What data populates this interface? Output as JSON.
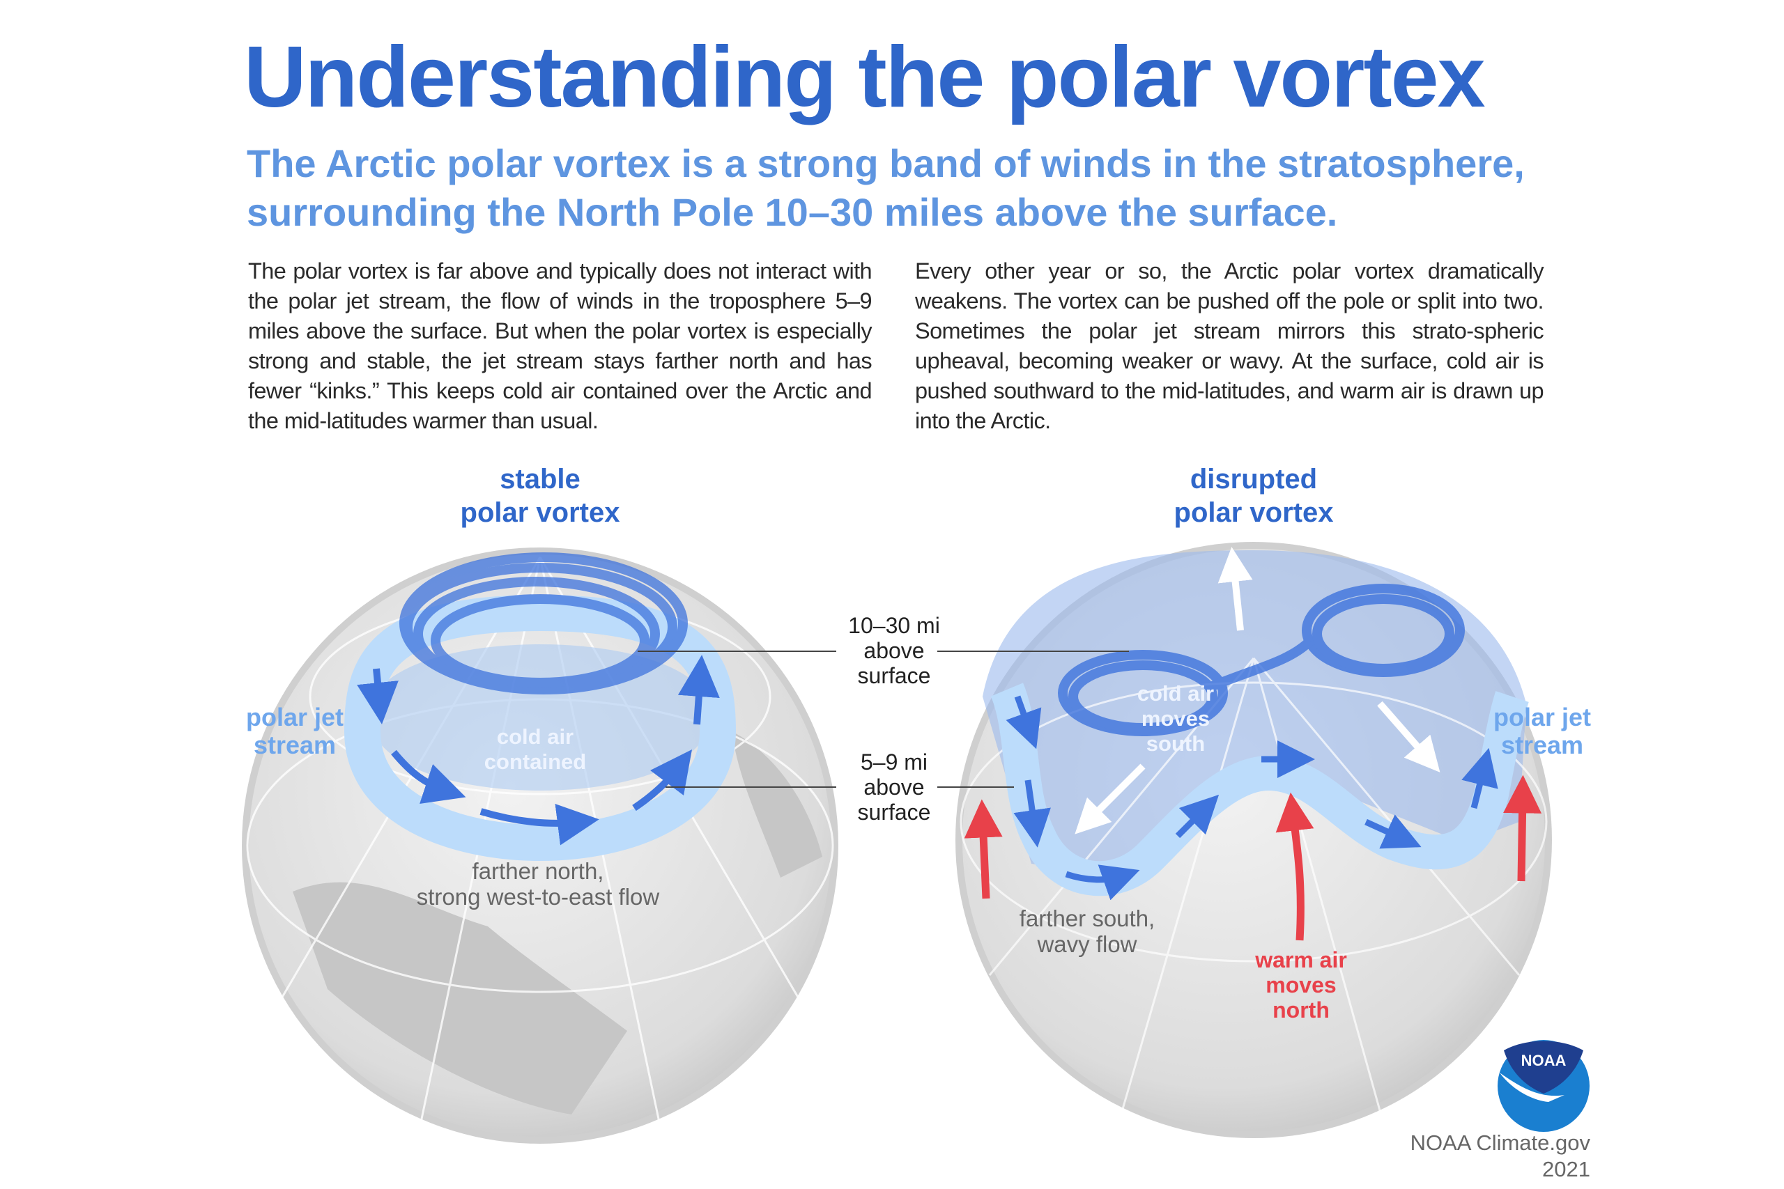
{
  "title": "Understanding the polar vortex",
  "subtitle": [
    "The Arctic polar vortex is a strong band of winds in the stratosphere,",
    "surrounding the North Pole 10–30 miles above the surface."
  ],
  "body_left": "The polar vortex is far above and typically does not interact with the polar jet stream, the flow of winds in the troposphere 5–9 miles above the surface. But when the polar vortex is especially strong and stable, the jet stream stays farther north and has fewer “kinks.” This keeps cold air contained over the Arctic and the mid-latitudes warmer than usual.",
  "body_right": "Every other year or so, the Arctic polar vortex dramatically weakens. The vortex can be pushed off the pole or split into two. Sometimes the polar jet stream mirrors this strato-spheric upheaval, becoming weaker or wavy. At the surface, cold air is pushed southward to the mid-latitudes, and warm air is drawn up into the Arctic.",
  "stable": {
    "heading": [
      "stable",
      "polar vortex"
    ],
    "jet_label": [
      "polar jet",
      "stream"
    ],
    "cold_label": [
      "cold air",
      "contained"
    ],
    "flow_label": [
      "farther north,",
      "strong west-to-east flow"
    ]
  },
  "disrupted": {
    "heading": [
      "disrupted",
      "polar vortex"
    ],
    "jet_label": [
      "polar jet",
      "stream"
    ],
    "cold_label": [
      "cold air",
      "moves",
      "south"
    ],
    "warm_label": [
      "warm air",
      "moves",
      "north"
    ],
    "flow_label": [
      "farther south,",
      "wavy flow"
    ]
  },
  "altitude_labels": {
    "upper": [
      "10–30 mi",
      "above",
      "surface"
    ],
    "lower": [
      "5–9 mi",
      "above",
      "surface"
    ]
  },
  "logo": {
    "text": "NOAA",
    "dark": "#1f3f8f",
    "light": "#1a7fd0"
  },
  "credit": [
    "NOAA Climate.gov",
    "2021"
  ],
  "colors": {
    "title": "#2f66c9",
    "subtitle": "#5e95e0",
    "vortex": "#3f74dd",
    "jet": "#bcdcfb",
    "warm": "#e8414a",
    "globe": "#d4d4d4"
  }
}
